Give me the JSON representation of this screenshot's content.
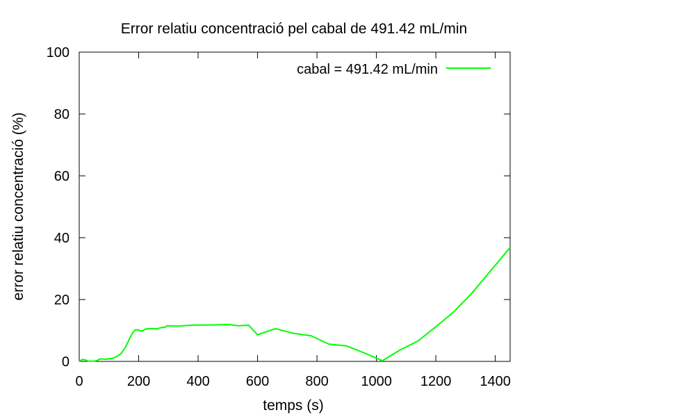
{
  "chart_data": {
    "type": "line",
    "title": "Error relatiu concentració pel cabal de 491.42 mL/min",
    "xlabel": "temps (s)",
    "ylabel": "error relatiu concentració (%)",
    "xlim": [
      0,
      1450
    ],
    "ylim": [
      0,
      100
    ],
    "xticks": [
      0,
      200,
      400,
      600,
      800,
      1000,
      1200,
      1400
    ],
    "yticks": [
      0,
      20,
      40,
      60,
      80,
      100
    ],
    "grid": false,
    "legend_position": "top-right",
    "series": [
      {
        "name": "cabal = 491.42 mL/min",
        "color": "#00ff00",
        "points": [
          [
            0,
            0.0
          ],
          [
            10,
            0.6
          ],
          [
            20,
            0.5
          ],
          [
            30,
            0.1
          ],
          [
            50,
            0.1
          ],
          [
            60,
            0.3
          ],
          [
            70,
            0.8
          ],
          [
            90,
            0.7
          ],
          [
            110,
            0.9
          ],
          [
            125,
            1.5
          ],
          [
            140,
            2.5
          ],
          [
            155,
            4.5
          ],
          [
            170,
            7.5
          ],
          [
            180,
            9.3
          ],
          [
            190,
            10.3
          ],
          [
            200,
            10.1
          ],
          [
            210,
            9.8
          ],
          [
            225,
            10.5
          ],
          [
            245,
            10.6
          ],
          [
            260,
            10.5
          ],
          [
            275,
            10.9
          ],
          [
            290,
            11.1
          ],
          [
            295,
            11.5
          ],
          [
            330,
            11.4
          ],
          [
            380,
            11.7
          ],
          [
            450,
            11.8
          ],
          [
            505,
            11.9
          ],
          [
            535,
            11.5
          ],
          [
            570,
            11.7
          ],
          [
            600,
            8.6
          ],
          [
            660,
            10.6
          ],
          [
            720,
            9.1
          ],
          [
            780,
            8.3
          ],
          [
            840,
            5.6
          ],
          [
            900,
            5.0
          ],
          [
            960,
            2.7
          ],
          [
            1020,
            0.2
          ],
          [
            1080,
            3.7
          ],
          [
            1140,
            6.6
          ],
          [
            1200,
            11.2
          ],
          [
            1260,
            16.0
          ],
          [
            1320,
            21.9
          ],
          [
            1380,
            28.8
          ],
          [
            1450,
            36.8
          ]
        ]
      }
    ]
  }
}
